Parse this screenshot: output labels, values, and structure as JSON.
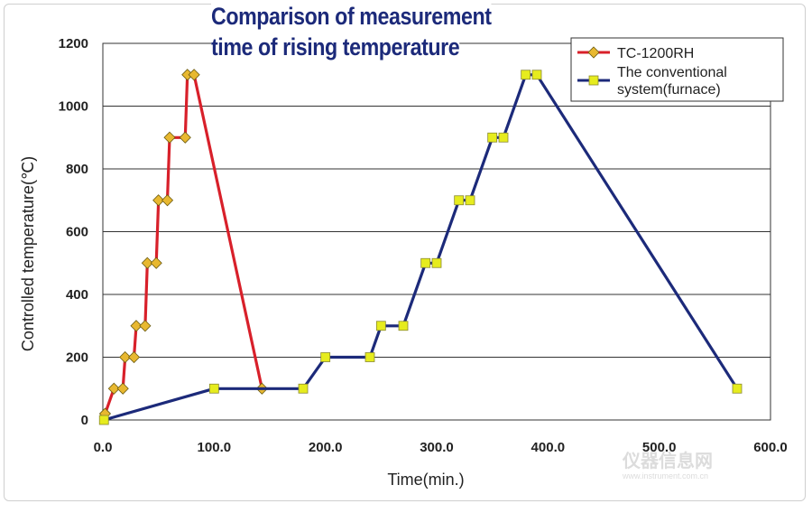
{
  "chart_data": {
    "type": "line",
    "title": [
      "Comparison of measurement",
      "time of rising temperature"
    ],
    "xlabel": "Time(min.)",
    "ylabel": "Controlled temperature(℃)",
    "xlim": [
      0,
      600
    ],
    "ylim": [
      0,
      1200
    ],
    "x_ticks": [
      "0.0",
      "100.0",
      "200.0",
      "300.0",
      "400.0",
      "500.0",
      "600.0"
    ],
    "y_ticks": [
      "0",
      "200",
      "400",
      "600",
      "800",
      "1000",
      "1200"
    ],
    "grid": "horizontal",
    "legend_position": "top-right",
    "series": [
      {
        "name": "TC-1200RH",
        "color": "#d8202a",
        "marker": "diamond",
        "marker_color": "#e8b830",
        "points": [
          [
            2,
            20
          ],
          [
            10,
            100
          ],
          [
            18,
            100
          ],
          [
            20,
            200
          ],
          [
            28,
            200
          ],
          [
            30,
            300
          ],
          [
            38,
            300
          ],
          [
            40,
            500
          ],
          [
            48,
            500
          ],
          [
            50,
            700
          ],
          [
            58,
            700
          ],
          [
            60,
            900
          ],
          [
            74,
            900
          ],
          [
            76,
            1100
          ],
          [
            82,
            1100
          ],
          [
            143,
            100
          ]
        ]
      },
      {
        "name": "The conventional system(furnace)",
        "color": "#1c2a7a",
        "marker": "square",
        "marker_color": "#e6ec1e",
        "points": [
          [
            1,
            0
          ],
          [
            100,
            100
          ],
          [
            180,
            100
          ],
          [
            200,
            200
          ],
          [
            240,
            200
          ],
          [
            250,
            300
          ],
          [
            270,
            300
          ],
          [
            290,
            500
          ],
          [
            300,
            500
          ],
          [
            320,
            700
          ],
          [
            330,
            700
          ],
          [
            350,
            900
          ],
          [
            360,
            900
          ],
          [
            380,
            1100
          ],
          [
            390,
            1100
          ],
          [
            570,
            100
          ]
        ]
      }
    ]
  },
  "watermark": {
    "text": "仪器信息网",
    "url": "www.instrument.com.cn"
  }
}
